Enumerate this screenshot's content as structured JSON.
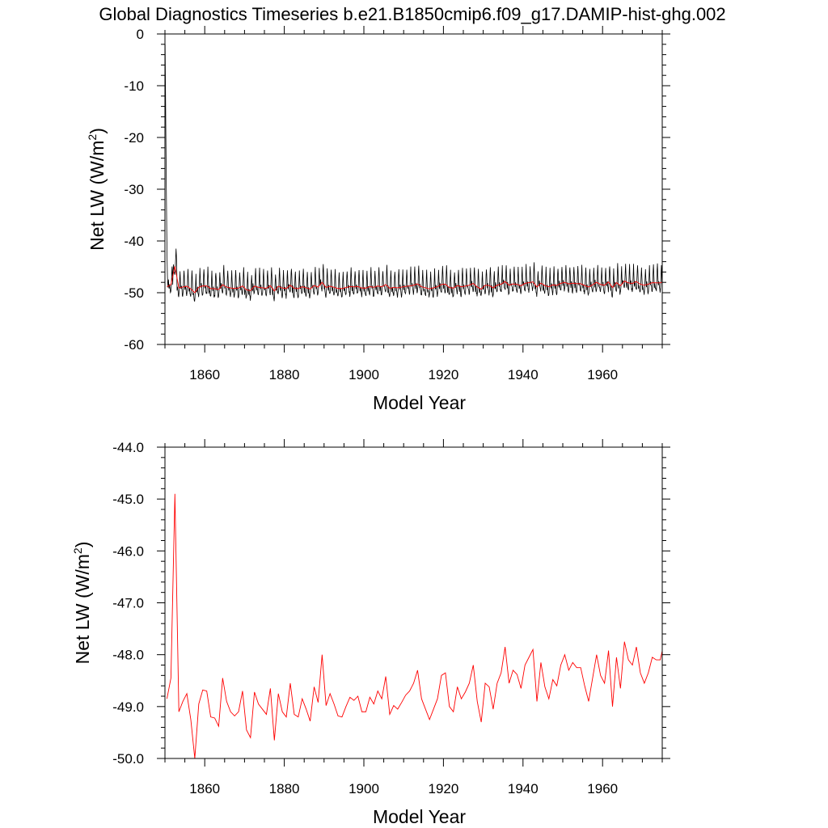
{
  "title": "Global Diagnostics Timeseries b.e21.B1850cmip6.f09_g17.DAMIP-hist-ghg.002",
  "chart_data": [
    {
      "type": "line",
      "xlabel": "Model Year",
      "ylabel": "Net LW (W/m2)",
      "ylabel_main": "Net LW (W/m",
      "ylabel_sup": "2",
      "ylabel_close": ")",
      "xlim": [
        1850,
        1975
      ],
      "ylim": [
        -60,
        0
      ],
      "x_ticks": [
        1860,
        1880,
        1900,
        1920,
        1940,
        1960
      ],
      "y_ticks": [
        0,
        -10,
        -20,
        -30,
        -40,
        -50,
        -60
      ],
      "y_tick_labels": [
        "0",
        "-10",
        "-20",
        "-30",
        "-40",
        "-50",
        "-60"
      ],
      "series": [
        {
          "color": "#000000",
          "style": "monthly",
          "x_start": 1850.04,
          "x_step": 0.0833333,
          "spinup_values": [
            -2.0,
            -9.5,
            -17.5,
            -25.0,
            -32.0,
            -38.5,
            -43.5,
            -46.8,
            -48.3,
            -49.0
          ],
          "annual_cycle": [
            -0.6,
            0.2,
            -0.3,
            -0.9,
            -1.4,
            -1.6,
            -1.2,
            0.0,
            2.1,
            3.4,
            1.8,
            0.2
          ],
          "noise_amp": 0.8
        },
        {
          "color": "#ff0000",
          "style": "annual",
          "ref": "annual_mean"
        }
      ]
    },
    {
      "type": "line",
      "xlabel": "Model Year",
      "ylabel": "Net LW (W/m2)",
      "ylabel_main": "Net LW (W/m",
      "ylabel_sup": "2",
      "ylabel_close": ")",
      "xlim": [
        1850,
        1975
      ],
      "ylim": [
        -50,
        -44
      ],
      "x_ticks": [
        1860,
        1880,
        1900,
        1920,
        1940,
        1960
      ],
      "y_ticks": [
        -44,
        -45,
        -46,
        -47,
        -48,
        -49,
        -50
      ],
      "y_tick_labels": [
        "-44.0",
        "-45.0",
        "-46.0",
        "-47.0",
        "-48.0",
        "-49.0",
        "-50.0"
      ],
      "series": [
        {
          "color": "#ff0000",
          "style": "annual",
          "ref": "annual_mean"
        }
      ]
    }
  ],
  "annual_mean": {
    "x_start": 1850.5,
    "x_step": 1,
    "values": [
      -48.85,
      -48.45,
      -44.9,
      -49.1,
      -48.9,
      -48.75,
      -49.25,
      -50.0,
      -48.95,
      -48.68,
      -48.7,
      -49.2,
      -49.22,
      -49.38,
      -48.45,
      -48.9,
      -49.1,
      -49.18,
      -49.1,
      -48.7,
      -49.45,
      -49.6,
      -48.72,
      -48.95,
      -49.05,
      -49.15,
      -48.65,
      -49.65,
      -48.75,
      -49.1,
      -49.2,
      -48.55,
      -49.15,
      -49.2,
      -48.85,
      -49.05,
      -49.28,
      -48.62,
      -48.92,
      -48.0,
      -48.98,
      -48.75,
      -48.95,
      -49.18,
      -49.2,
      -49.0,
      -48.82,
      -48.88,
      -48.8,
      -49.1,
      -49.1,
      -48.82,
      -48.95,
      -48.7,
      -48.85,
      -48.42,
      -49.15,
      -48.98,
      -49.05,
      -48.92,
      -48.78,
      -48.7,
      -48.55,
      -48.3,
      -48.85,
      -49.05,
      -49.25,
      -49.05,
      -48.85,
      -48.4,
      -48.35,
      -49.0,
      -49.1,
      -48.62,
      -48.85,
      -48.72,
      -48.55,
      -48.2,
      -48.9,
      -49.3,
      -48.55,
      -48.62,
      -49.05,
      -48.55,
      -48.35,
      -47.85,
      -48.55,
      -48.3,
      -48.38,
      -48.65,
      -48.2,
      -48.05,
      -47.9,
      -48.9,
      -48.15,
      -48.62,
      -48.85,
      -48.48,
      -48.6,
      -48.2,
      -48.0,
      -48.3,
      -48.15,
      -48.25,
      -48.25,
      -48.6,
      -48.9,
      -48.45,
      -48.0,
      -48.4,
      -48.55,
      -47.92,
      -49.0,
      -48.05,
      -48.65,
      -47.75,
      -48.1,
      -48.2,
      -47.85,
      -48.35,
      -48.55,
      -48.35,
      -48.05,
      -48.1,
      -48.1,
      -47.75
    ]
  }
}
